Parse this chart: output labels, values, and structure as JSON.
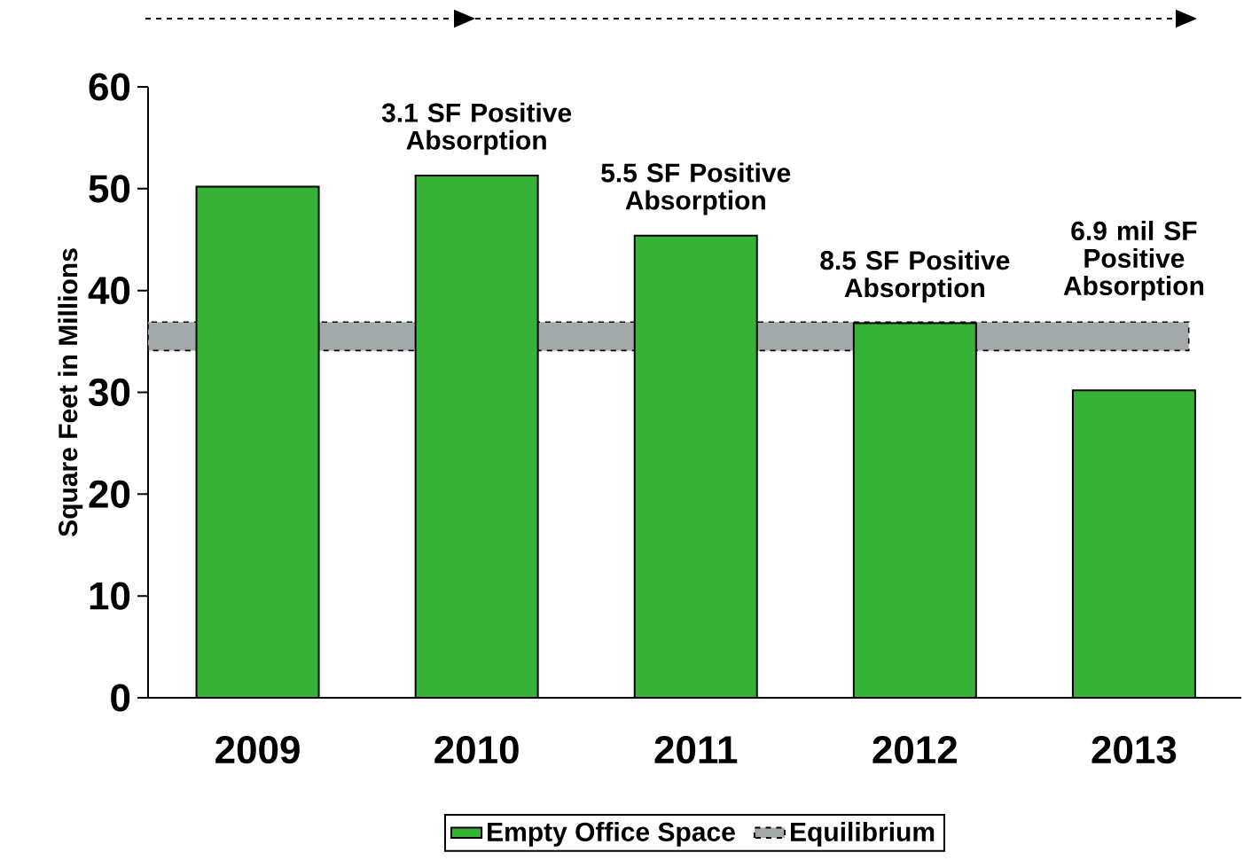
{
  "chart_data": {
    "type": "bar",
    "ylabel": "Square Feet in Millions",
    "categories": [
      "2009",
      "2010",
      "2011",
      "2012",
      "2013"
    ],
    "series": [
      {
        "name": "Empty Office Space",
        "color": "#36b236",
        "values": [
          50.2,
          51.3,
          45.4,
          36.8,
          30.2
        ]
      }
    ],
    "ylim": [
      0,
      60
    ],
    "yticks": [
      0,
      10,
      20,
      30,
      40,
      50,
      60
    ],
    "bands": [
      {
        "axis": "y",
        "from": 34.1,
        "to": 36.9,
        "label": "Equilibrium",
        "color": "#a3a8aa"
      }
    ],
    "annotations": [
      {
        "text": "3.1 SF Positive Absorption",
        "x": "2010",
        "y": 51.3
      },
      {
        "text": "5.5 SF Positive Absorption",
        "x": "2011",
        "y": 45.4
      },
      {
        "text": "8.5 SF Positive Absorption",
        "x": "2012",
        "y": 36.8
      },
      {
        "text": "6.9 mil SF Positive Absorption",
        "x": "2013",
        "y": 37
      }
    ],
    "legend": "bottom"
  }
}
